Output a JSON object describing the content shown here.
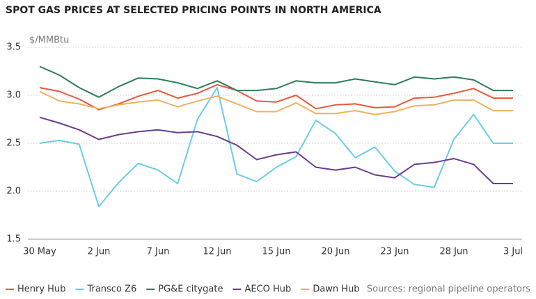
{
  "chart_data": {
    "type": "line",
    "title": "SPOT GAS PRICES AT SELECTED PRICING POINTS IN NORTH AMERICA",
    "y_label": "$/MMBtu",
    "source": "Sources: regional pipeline operators",
    "categories": [
      "30 May",
      null,
      null,
      "2 Jun",
      null,
      null,
      "7 Jun",
      null,
      null,
      "12 Jun",
      null,
      null,
      "15 Jun",
      null,
      null,
      "20 Jun",
      null,
      null,
      "23 Jun",
      null,
      null,
      "28 Jun",
      null,
      null,
      "3 Jul"
    ],
    "ylim": [
      1.5,
      3.5
    ],
    "yticks": [
      1.5,
      {
        "value": 2,
        "label": "2.0"
      },
      2.5,
      {
        "value": 3,
        "label": "3.0"
      },
      3.5
    ],
    "grid": true,
    "legend": "bottom",
    "series": [
      {
        "name": "Henry Hub",
        "color": "#e8593c",
        "values": [
          3.08,
          3.04,
          2.96,
          2.85,
          2.91,
          2.99,
          3.05,
          2.97,
          3.02,
          3.11,
          3.05,
          2.94,
          2.93,
          3.0,
          2.86,
          2.9,
          2.91,
          2.87,
          2.88,
          2.97,
          2.98,
          3.02,
          3.07,
          2.97,
          2.97
        ]
      },
      {
        "name": "Transco Z6",
        "color": "#6ccbe8",
        "values": [
          2.5,
          2.53,
          2.49,
          1.84,
          2.09,
          2.29,
          2.22,
          2.08,
          2.75,
          3.08,
          2.18,
          2.1,
          2.25,
          2.36,
          2.74,
          2.6,
          2.35,
          2.46,
          2.21,
          2.07,
          2.04,
          2.54,
          2.8,
          2.5,
          2.5
        ]
      },
      {
        "name": "PG&E citygate",
        "color": "#2e7d5b",
        "values": [
          3.3,
          3.21,
          3.08,
          2.98,
          3.09,
          3.18,
          3.17,
          3.13,
          3.07,
          3.15,
          3.05,
          3.05,
          3.07,
          3.15,
          3.13,
          3.13,
          3.17,
          3.14,
          3.11,
          3.19,
          3.17,
          3.19,
          3.16,
          3.05,
          3.05
        ]
      },
      {
        "name": "AECO Hub",
        "color": "#6b3d8e",
        "values": [
          2.77,
          2.71,
          2.64,
          2.54,
          2.59,
          2.62,
          2.64,
          2.61,
          2.62,
          2.57,
          2.48,
          2.33,
          2.38,
          2.41,
          2.25,
          2.22,
          2.25,
          2.17,
          2.14,
          2.28,
          2.3,
          2.34,
          2.28,
          2.08,
          2.08
        ]
      },
      {
        "name": "Dawn Hub",
        "color": "#f0b15e",
        "values": [
          3.04,
          2.94,
          2.91,
          2.86,
          2.9,
          2.93,
          2.95,
          2.88,
          2.94,
          2.99,
          2.91,
          2.83,
          2.83,
          2.92,
          2.81,
          2.81,
          2.84,
          2.8,
          2.83,
          2.89,
          2.9,
          2.95,
          2.95,
          2.84,
          2.84
        ]
      }
    ]
  }
}
